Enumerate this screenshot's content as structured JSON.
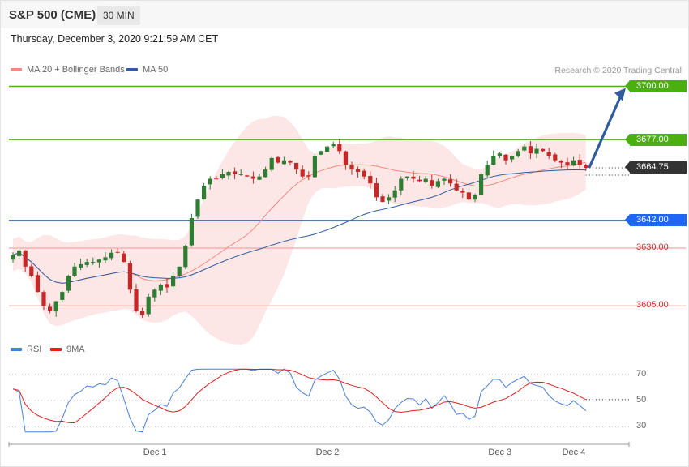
{
  "header": {
    "title": "S&P 500 (CME)",
    "timeframe": "30 MIN"
  },
  "datetime": "Thursday, December 3, 2020 9:21:59 AM CET",
  "legend": [
    {
      "label": "MA 20 + Bollinger Bands",
      "color": "#f28b82"
    },
    {
      "label": "MA 50",
      "color": "#2f5c9e"
    }
  ],
  "rsi_legend": [
    {
      "label": "RSI",
      "color": "#4a7fd6"
    },
    {
      "label": "9MA",
      "color": "#e02020"
    }
  ],
  "credit": "Research © 2020 Trading Central",
  "colors": {
    "up": "#2e7d32",
    "down": "#c62828",
    "resistance": "#4caf10",
    "pivot": "#1e66f5",
    "support": "#e06060",
    "last": "#333333"
  },
  "chart_data": {
    "type": "candlestick",
    "price_levels": [
      {
        "value": 3700.0,
        "label": "3700.00",
        "kind": "resistance"
      },
      {
        "value": 3677.0,
        "label": "3677.00",
        "kind": "resistance"
      },
      {
        "value": 3664.75,
        "label": "3664.75",
        "kind": "last"
      },
      {
        "value": 3642.0,
        "label": "3642.00",
        "kind": "pivot"
      },
      {
        "value": 3630.0,
        "label": "3630.00",
        "kind": "support"
      },
      {
        "value": 3605.0,
        "label": "3605.00",
        "kind": "support"
      }
    ],
    "x_labels": [
      "Dec 1",
      "Dec 2",
      "Dec 3",
      "Dec 4"
    ],
    "x_label_index": [
      23,
      51,
      79,
      91
    ],
    "price_range": [
      3590,
      3703
    ],
    "closes": [
      3627,
      3629,
      3622,
      3618,
      3611,
      3605,
      3603,
      3607,
      3611,
      3618,
      3622,
      3623,
      3624,
      3624,
      3625,
      3626,
      3628,
      3628,
      3624,
      3612,
      3603,
      3601,
      3609,
      3612,
      3614,
      3613,
      3618,
      3622,
      3631,
      3643,
      3651,
      3657,
      3660,
      3660,
      3662,
      3663,
      3662,
      3662,
      3661,
      3660,
      3661,
      3664,
      3669,
      3667,
      3668,
      3667,
      3664,
      3661,
      3661,
      3670,
      3672,
      3674,
      3675,
      3672,
      3666,
      3664,
      3663,
      3661,
      3658,
      3652,
      3650,
      3652,
      3655,
      3660,
      3661,
      3660,
      3659,
      3660,
      3657,
      3659,
      3660,
      3658,
      3655,
      3654,
      3651,
      3653,
      3662,
      3666,
      3670,
      3671,
      3668,
      3670,
      3672,
      3674,
      3671,
      3673,
      3672,
      3670,
      3668,
      3667,
      3666,
      3668,
      3666,
      3664.75
    ],
    "rsi": {
      "levels": [
        70,
        50,
        30
      ],
      "range": [
        24,
        76
      ]
    }
  }
}
